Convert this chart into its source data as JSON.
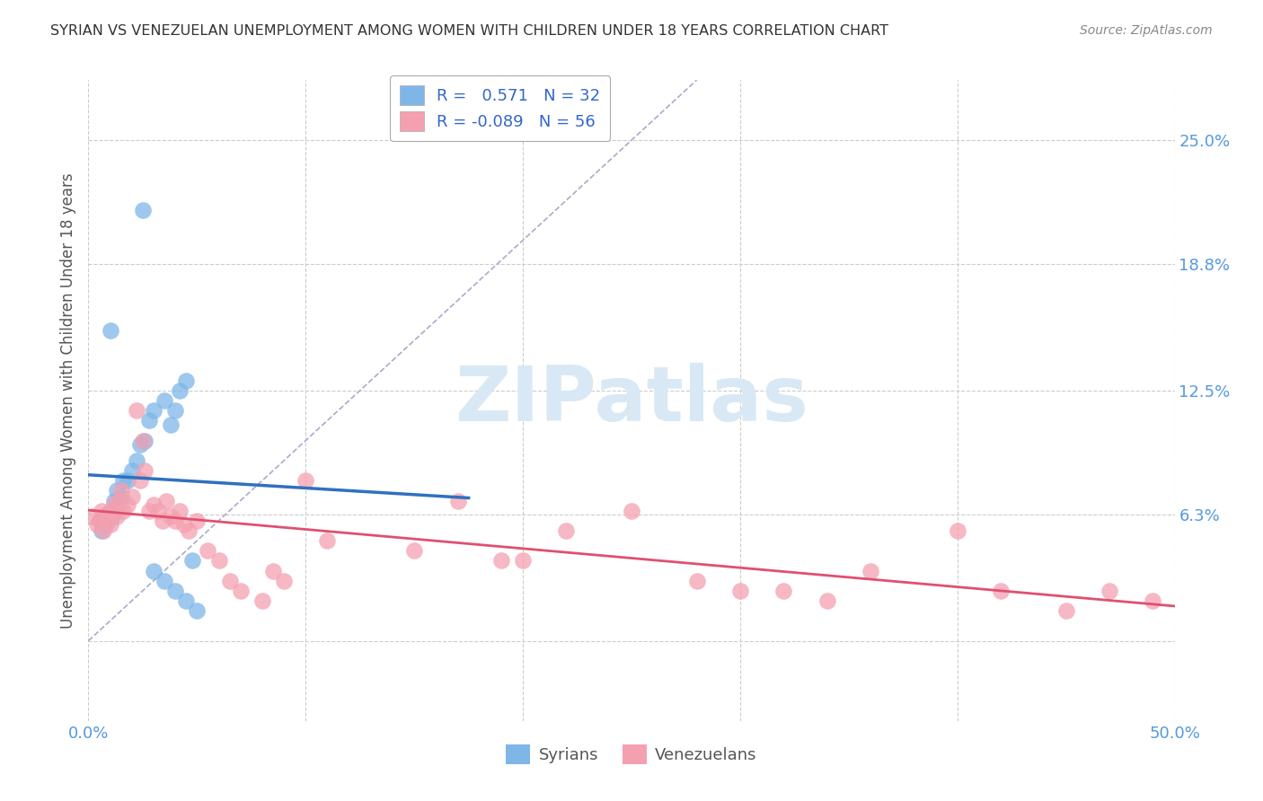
{
  "title": "SYRIAN VS VENEZUELAN UNEMPLOYMENT AMONG WOMEN WITH CHILDREN UNDER 18 YEARS CORRELATION CHART",
  "source": "Source: ZipAtlas.com",
  "ylabel": "Unemployment Among Women with Children Under 18 years",
  "xmin": 0.0,
  "xmax": 0.5,
  "ymin": -0.04,
  "ymax": 0.28,
  "syrian_R": 0.571,
  "syrian_N": 32,
  "venezuelan_R": -0.089,
  "venezuelan_N": 56,
  "syrian_color": "#7EB6E8",
  "venezuelan_color": "#F4A0B0",
  "regression_line_syrian_color": "#3070C0",
  "regression_line_venezuelan_color": "#E05070",
  "diagonal_color": "#AAAACC",
  "watermark_color": "#D8E8F5",
  "background_color": "#FFFFFF",
  "grid_color": "#CCCCCC",
  "axis_label_color": "#5599DD",
  "legend_text_color": "#3366CC",
  "syrian_x": [
    0.005,
    0.006,
    0.007,
    0.008,
    0.009,
    0.01,
    0.011,
    0.012,
    0.013,
    0.014,
    0.015,
    0.016,
    0.018,
    0.02,
    0.022,
    0.024,
    0.026,
    0.028,
    0.03,
    0.035,
    0.038,
    0.04,
    0.042,
    0.045,
    0.048,
    0.025,
    0.01,
    0.03,
    0.035,
    0.04,
    0.045,
    0.05
  ],
  "syrian_y": [
    0.06,
    0.055,
    0.062,
    0.058,
    0.063,
    0.065,
    0.062,
    0.07,
    0.075,
    0.068,
    0.072,
    0.08,
    0.08,
    0.085,
    0.09,
    0.098,
    0.1,
    0.11,
    0.115,
    0.12,
    0.108,
    0.115,
    0.125,
    0.13,
    0.04,
    0.215,
    0.155,
    0.035,
    0.03,
    0.025,
    0.02,
    0.015
  ],
  "venezuelan_x": [
    0.002,
    0.004,
    0.005,
    0.006,
    0.007,
    0.008,
    0.009,
    0.01,
    0.011,
    0.012,
    0.013,
    0.014,
    0.015,
    0.016,
    0.018,
    0.02,
    0.022,
    0.024,
    0.025,
    0.026,
    0.028,
    0.03,
    0.032,
    0.034,
    0.036,
    0.038,
    0.04,
    0.042,
    0.044,
    0.046,
    0.05,
    0.055,
    0.06,
    0.065,
    0.07,
    0.08,
    0.085,
    0.09,
    0.1,
    0.11,
    0.15,
    0.17,
    0.19,
    0.2,
    0.22,
    0.25,
    0.28,
    0.3,
    0.32,
    0.34,
    0.36,
    0.4,
    0.42,
    0.45,
    0.47,
    0.49
  ],
  "venezuelan_y": [
    0.062,
    0.058,
    0.06,
    0.065,
    0.055,
    0.063,
    0.06,
    0.058,
    0.065,
    0.068,
    0.062,
    0.07,
    0.075,
    0.065,
    0.068,
    0.072,
    0.115,
    0.08,
    0.1,
    0.085,
    0.065,
    0.068,
    0.065,
    0.06,
    0.07,
    0.062,
    0.06,
    0.065,
    0.058,
    0.055,
    0.06,
    0.045,
    0.04,
    0.03,
    0.025,
    0.02,
    0.035,
    0.03,
    0.08,
    0.05,
    0.045,
    0.07,
    0.04,
    0.04,
    0.055,
    0.065,
    0.03,
    0.025,
    0.025,
    0.02,
    0.035,
    0.055,
    0.025,
    0.015,
    0.025,
    0.02
  ],
  "ytick_positions": [
    0.0,
    0.063,
    0.125,
    0.188,
    0.25
  ],
  "ytick_labels": [
    "",
    "6.3%",
    "12.5%",
    "18.8%",
    "25.0%"
  ],
  "xtick_positions": [
    0.0,
    0.1,
    0.2,
    0.3,
    0.4,
    0.5
  ],
  "xtick_labels": [
    "0.0%",
    "",
    "",
    "",
    "",
    "50.0%"
  ]
}
